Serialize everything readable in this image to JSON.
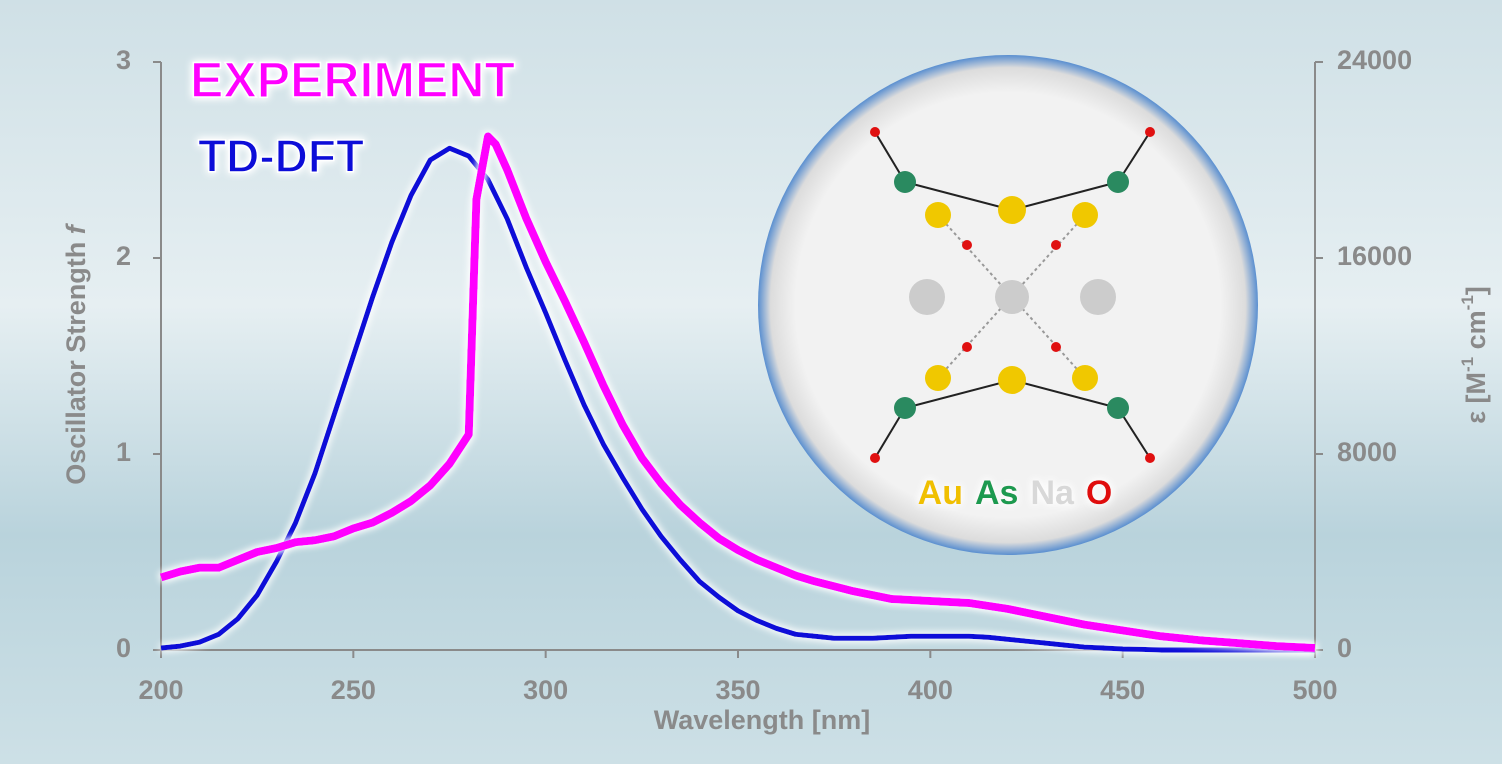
{
  "chart_data": {
    "type": "line",
    "x_label": "Wavelength [nm]",
    "y_label": [
      "Oscillator Strength ",
      "f"
    ],
    "y2_label": [
      "ε [M",
      "-1",
      " cm",
      "-1",
      "]"
    ],
    "xlim": [
      200,
      500
    ],
    "xticks": [
      200,
      250,
      300,
      350,
      400,
      450,
      500
    ],
    "ylim": [
      0,
      3
    ],
    "yticks": [
      0,
      1,
      2,
      3
    ],
    "y2lim": [
      0,
      24000
    ],
    "y2ticks": [
      0,
      8000,
      16000,
      24000
    ],
    "series": [
      {
        "name": "EXPERIMENT",
        "color": "#ff00ff",
        "axis": "y2",
        "x": [
          200,
          205,
          210,
          215,
          220,
          225,
          230,
          235,
          240,
          245,
          250,
          255,
          260,
          265,
          270,
          275,
          280,
          282,
          285,
          287,
          290,
          295,
          300,
          305,
          310,
          315,
          320,
          325,
          330,
          335,
          340,
          345,
          350,
          355,
          360,
          365,
          370,
          380,
          390,
          400,
          410,
          420,
          430,
          440,
          450,
          460,
          470,
          480,
          490,
          500
        ],
        "values": [
          2960,
          3200,
          3360,
          3360,
          3680,
          4000,
          4160,
          4400,
          4480,
          4640,
          4960,
          5200,
          5600,
          6080,
          6720,
          7600,
          8800,
          18400,
          20960,
          20640,
          19600,
          17600,
          15840,
          14240,
          12560,
          10800,
          9200,
          7840,
          6800,
          5920,
          5200,
          4560,
          4080,
          3680,
          3360,
          3040,
          2800,
          2400,
          2080,
          2000,
          1920,
          1680,
          1360,
          1040,
          800,
          560,
          400,
          280,
          160,
          80
        ]
      },
      {
        "name": "TD-DFT",
        "color": "#1010d8",
        "x": [
          200,
          205,
          210,
          215,
          220,
          225,
          230,
          235,
          240,
          245,
          250,
          255,
          260,
          265,
          270,
          275,
          280,
          285,
          290,
          295,
          300,
          305,
          310,
          315,
          320,
          325,
          330,
          335,
          340,
          345,
          350,
          355,
          360,
          365,
          370,
          375,
          380,
          385,
          390,
          395,
          400,
          405,
          410,
          415,
          420,
          425,
          430,
          435,
          440,
          445,
          450,
          455,
          460,
          500
        ],
        "values": [
          0.01,
          0.02,
          0.04,
          0.08,
          0.16,
          0.28,
          0.45,
          0.65,
          0.9,
          1.2,
          1.5,
          1.8,
          2.08,
          2.32,
          2.5,
          2.56,
          2.52,
          2.4,
          2.2,
          1.95,
          1.72,
          1.48,
          1.25,
          1.05,
          0.88,
          0.72,
          0.58,
          0.46,
          0.35,
          0.27,
          0.2,
          0.15,
          0.11,
          0.08,
          0.07,
          0.06,
          0.06,
          0.06,
          0.065,
          0.07,
          0.07,
          0.07,
          0.07,
          0.065,
          0.055,
          0.045,
          0.035,
          0.025,
          0.015,
          0.01,
          0.005,
          0.003,
          0,
          0
        ]
      }
    ],
    "inset_legend": [
      {
        "label": "Au",
        "color": "#f0c000"
      },
      {
        "label": "As",
        "color": "#1a9a50"
      },
      {
        "label": "Na",
        "color": "#d8d8d8"
      },
      {
        "label": "O",
        "color": "#e01010"
      }
    ]
  }
}
